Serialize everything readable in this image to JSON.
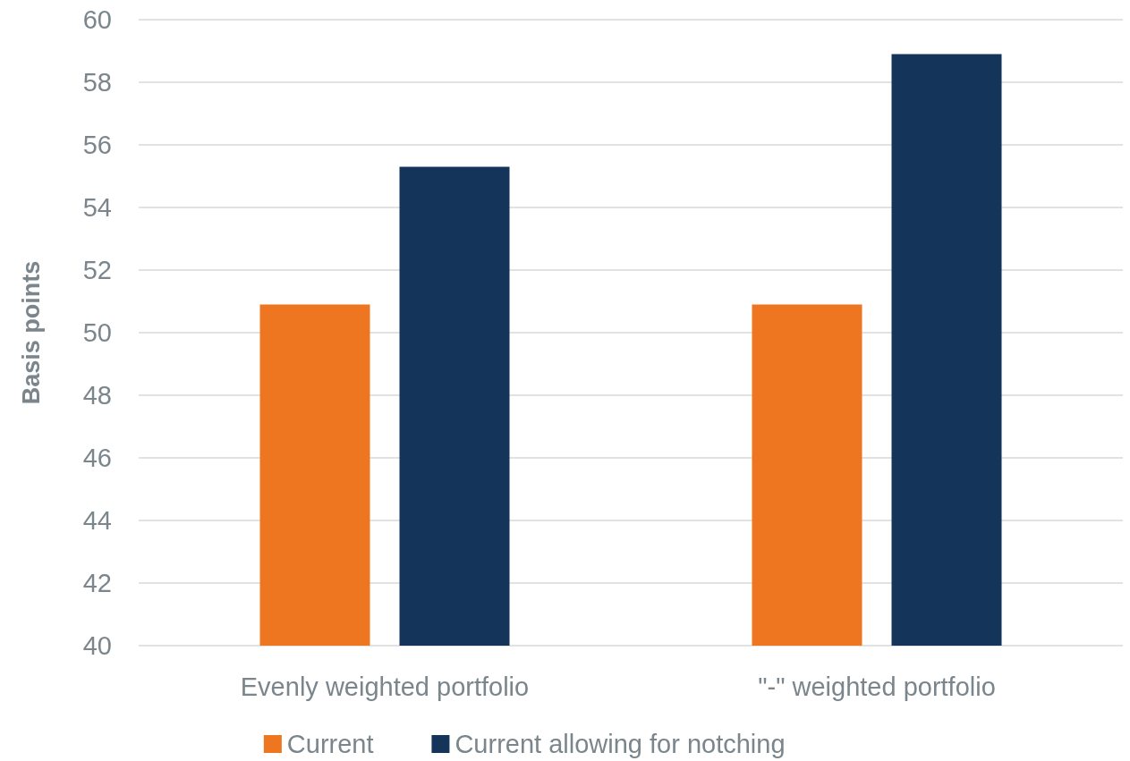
{
  "chart_data": {
    "type": "bar",
    "ylabel": "Basis points",
    "categories": [
      "Evenly weighted portfolio",
      "\"-\" weighted portfolio"
    ],
    "series": [
      {
        "name": "Current",
        "color": "#ee7620",
        "values": [
          50.9,
          50.9
        ]
      },
      {
        "name": "Current allowing for notching",
        "color": "#143459",
        "values": [
          55.3,
          58.9
        ]
      }
    ],
    "ylim": [
      40,
      60
    ],
    "yticks": [
      40,
      42,
      44,
      46,
      48,
      50,
      52,
      54,
      56,
      58,
      60
    ],
    "grid": "y",
    "legend": "bottom"
  }
}
